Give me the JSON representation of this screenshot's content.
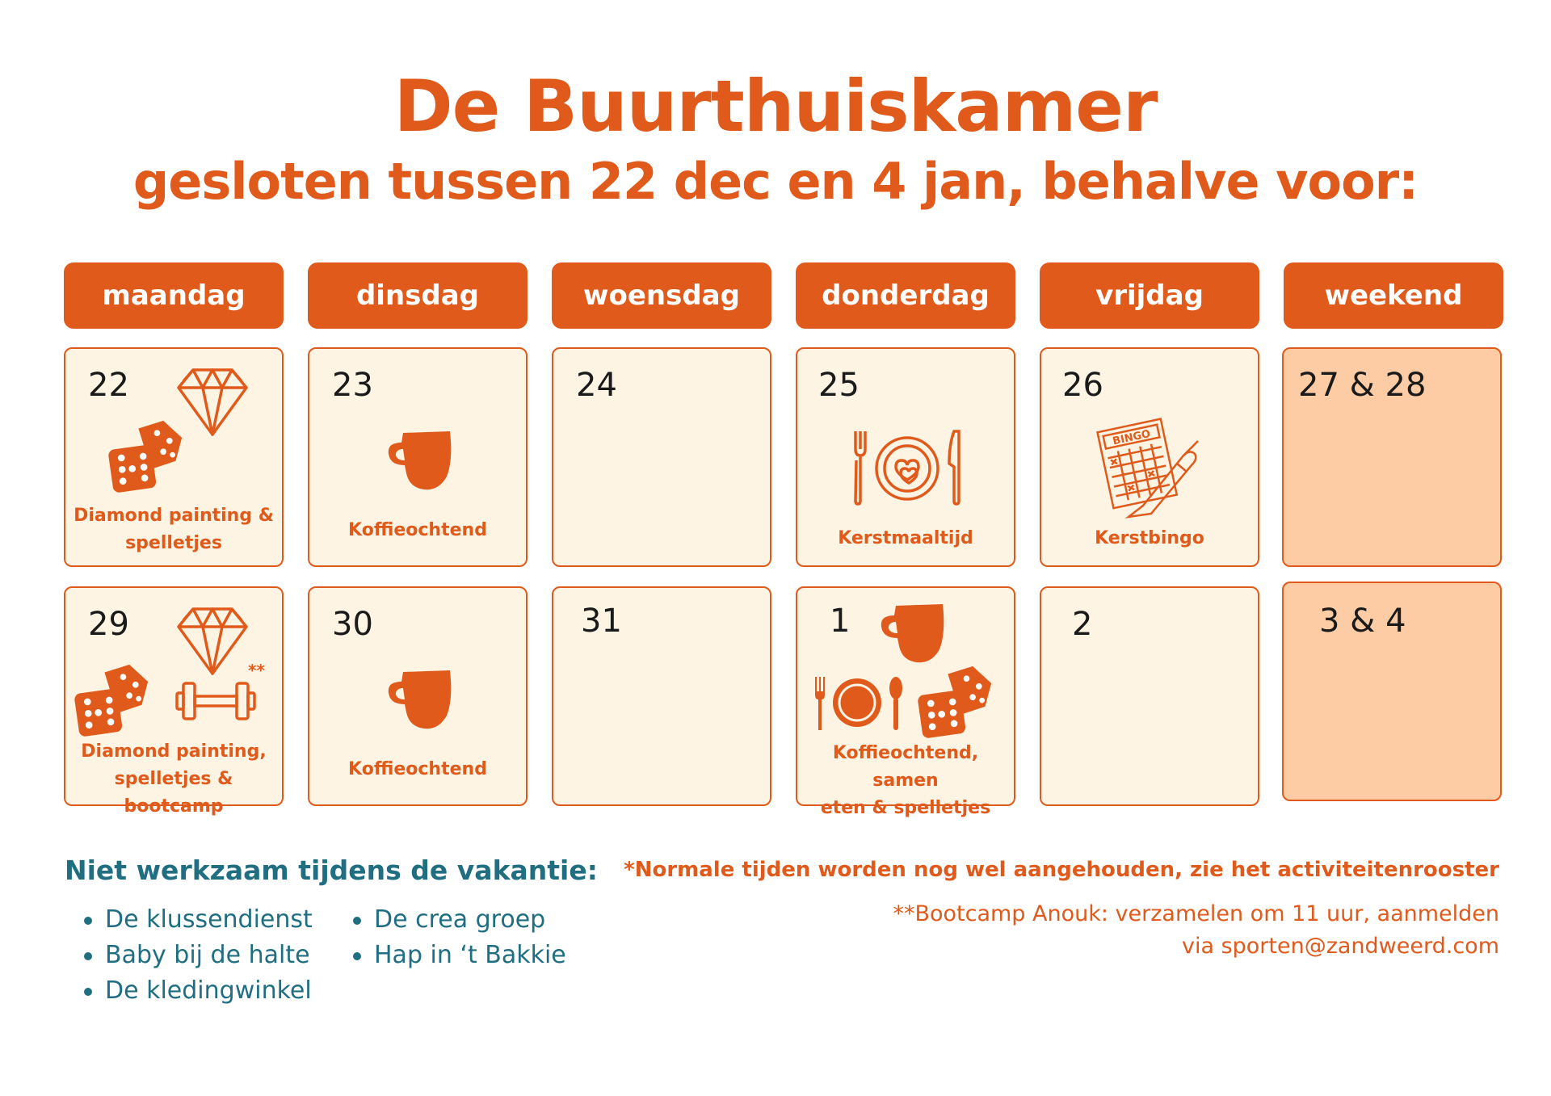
{
  "header": {
    "title": "De Buurthuiskamer",
    "subtitle": "gesloten tussen 22 dec en 4 jan, behalve voor:"
  },
  "days": [
    "maandag",
    "dinsdag",
    "woensdag",
    "donderdag",
    "vrijdag",
    "weekend"
  ],
  "week1": {
    "mon": {
      "date": "22",
      "label_l1": "Diamond painting &",
      "label_l2": "spelletjes",
      "icons": [
        "diamond-icon",
        "dice-icon"
      ]
    },
    "tue": {
      "date": "23",
      "label_l1": "Koffieochtend",
      "icons": [
        "coffee-cup-icon"
      ]
    },
    "wed": {
      "date": "24"
    },
    "thu": {
      "date": "25",
      "label_l1": "Kerstmaaltijd",
      "icons": [
        "dinner-plate-icon"
      ]
    },
    "fri": {
      "date": "26",
      "label_l1": "Kerstbingo",
      "icons": [
        "bingo-card-icon"
      ],
      "bingo_word": "BINGO"
    },
    "wkd": {
      "date": "27 & 28"
    }
  },
  "week2": {
    "mon": {
      "date": "29",
      "label_l1": "Diamond painting,",
      "label_l2": "spelletjes & bootcamp",
      "asterisk": "**",
      "icons": [
        "diamond-icon",
        "dice-icon",
        "dumbbell-icon"
      ]
    },
    "tue": {
      "date": "30",
      "label_l1": "Koffieochtend",
      "icons": [
        "coffee-cup-icon"
      ]
    },
    "wed": {
      "date": "31"
    },
    "thu": {
      "date": "1",
      "label_l1": "Koffieochtend, samen",
      "label_l2": "eten & spelletjes",
      "icons": [
        "coffee-cup-icon",
        "plate-cutlery-icon",
        "dice-icon"
      ]
    },
    "fri": {
      "date": "2"
    },
    "wkd": {
      "date": "3 & 4"
    }
  },
  "notes": {
    "closed_heading": "Niet werkzaam  tijdens de vakantie:",
    "closed_col1": [
      "De klussendienst",
      "Baby bij de halte",
      "De kledingwinkel"
    ],
    "closed_col2": [
      "De crea groep",
      "Hap in ‘t Bakkie"
    ],
    "normal_times": "*Normale tijden worden nog wel aangehouden, zie het activiteitenrooster",
    "bootcamp_l1": "**Bootcamp Anouk: verzamelen om 11 uur, aanmelden",
    "bootcamp_l2": "via  sporten@zandweerd.com"
  },
  "colors": {
    "accent": "#e05a1b",
    "cell_bg": "#fdf4e3",
    "weekend_bg": "#fdcca4",
    "teal": "#1f6e82"
  }
}
